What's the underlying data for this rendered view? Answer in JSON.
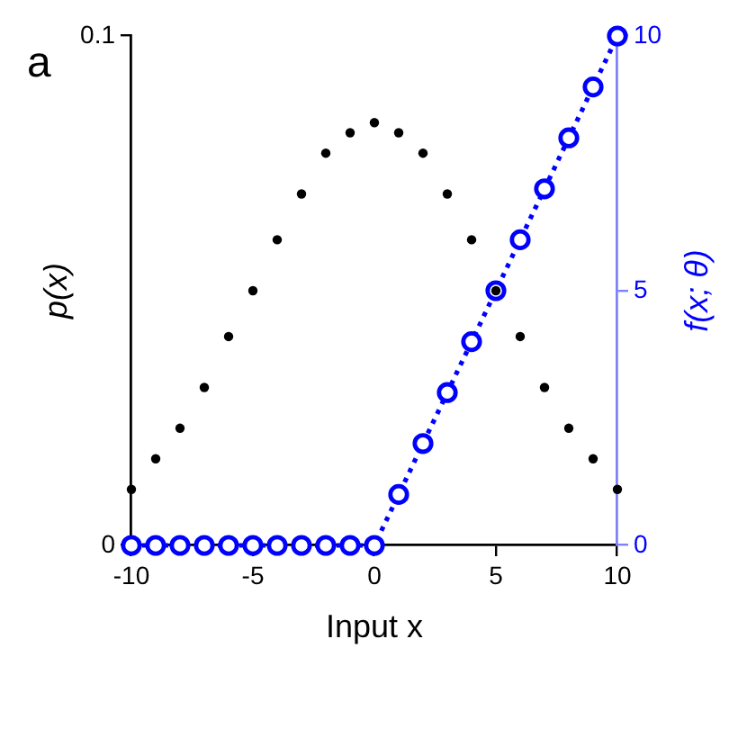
{
  "chart_data": {
    "type": "scatter",
    "title": "a",
    "xlabel": "Input x",
    "ylabel": "p(x)",
    "y2label": "f(x; θ)",
    "x": [
      -10,
      -9,
      -8,
      -7,
      -6,
      -5,
      -4,
      -3,
      -2,
      -1,
      0,
      1,
      2,
      3,
      4,
      5,
      6,
      7,
      8,
      9,
      10
    ],
    "series": [
      {
        "color": "#000000",
        "values": [
          0.011,
          0.017,
          0.023,
          0.031,
          0.041,
          0.05,
          0.06,
          0.069,
          0.077,
          0.081,
          0.083,
          0.081,
          0.077,
          0.069,
          0.06,
          0.05,
          0.041,
          0.031,
          0.023,
          0.017,
          0.011
        ]
      },
      {
        "type": "line",
        "color": "#0000ff",
        "axis": "y2",
        "values": [
          0,
          0,
          0,
          0,
          0,
          0,
          0,
          0,
          0,
          0,
          0,
          1,
          2,
          3,
          4,
          5,
          6,
          7,
          8,
          9,
          10
        ]
      }
    ],
    "xlim": [
      -10,
      10
    ],
    "xticks": [
      -10,
      -5,
      0,
      5,
      10
    ],
    "ylim": [
      0,
      0.1
    ],
    "yticks": [
      0,
      0.1
    ],
    "y2lim": [
      0,
      10
    ],
    "y2ticks": [
      0,
      5,
      10
    ],
    "marker": "circle",
    "line_style": "dotted"
  }
}
